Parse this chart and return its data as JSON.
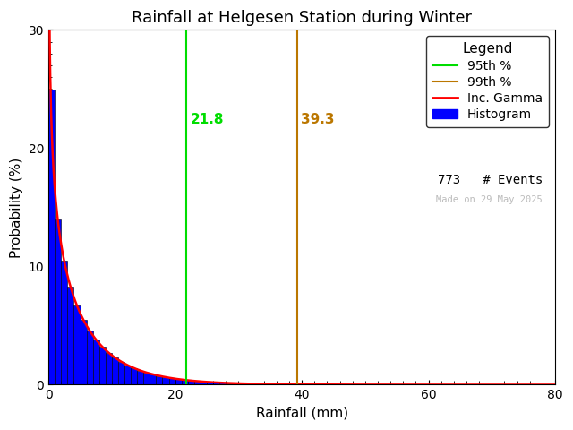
{
  "title": "Rainfall at Helgesen Station during Winter",
  "xlabel": "Rainfall (mm)",
  "ylabel": "Probability (%)",
  "xlim": [
    0,
    80
  ],
  "ylim": [
    0,
    30
  ],
  "n_events": 773,
  "p95_value": 21.8,
  "p99_value": 39.3,
  "p95_color": "#00dd00",
  "p99_color": "#bb7700",
  "gamma_color": "#ff0000",
  "hist_color": "#0000ff",
  "hist_edge_color": "#000000",
  "legend_title": "Legend",
  "watermark": "Made on 29 May 2025",
  "watermark_color": "#bbbbbb",
  "gamma_shape": 0.72,
  "gamma_scale": 7.2,
  "bin_width": 1,
  "background_color": "#ffffff",
  "title_fontsize": 13,
  "label_fontsize": 11,
  "tick_fontsize": 10,
  "legend_fontsize": 10
}
